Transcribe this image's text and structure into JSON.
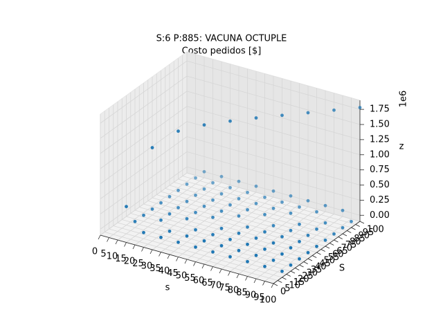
{
  "chart_data": {
    "type": "scatter3d",
    "title": "S:6 P:885: VACUNA OCTUPLE",
    "subtitle": "Costo pedidos [$]",
    "xlabel": "s",
    "ylabel": "S",
    "zlabel": "z",
    "z_offset_label": "1e6",
    "color": "#1f77b4",
    "grid": true,
    "s": [
      10,
      20,
      30,
      40,
      50,
      60,
      70,
      80,
      90,
      100
    ],
    "S": [
      10,
      20,
      30,
      40,
      50,
      60,
      70,
      80,
      90,
      100
    ],
    "z": [
      [
        0.35,
        0,
        0,
        0,
        0,
        0,
        0,
        0,
        0,
        0
      ],
      [
        0,
        1.3,
        0,
        0,
        0,
        0,
        0,
        0,
        0,
        0
      ],
      [
        0,
        0,
        1.55,
        0,
        0,
        0,
        0,
        0,
        0,
        0
      ],
      [
        0,
        0,
        0,
        1.63,
        0,
        0,
        0,
        0,
        0,
        0
      ],
      [
        0,
        0,
        0,
        0,
        1.67,
        0,
        0,
        0,
        0,
        0
      ],
      [
        0,
        0,
        0,
        0,
        0,
        1.7,
        0,
        0,
        0,
        0
      ],
      [
        0,
        0,
        0,
        0,
        0,
        0,
        1.72,
        0,
        0,
        0
      ],
      [
        0,
        0,
        0,
        0,
        0,
        0,
        0,
        1.74,
        0,
        0
      ],
      [
        0,
        0,
        0,
        0,
        0,
        0,
        0,
        0,
        1.76,
        0
      ],
      [
        0,
        0,
        0,
        0,
        0,
        0,
        0,
        0,
        0,
        1.78
      ]
    ],
    "xlim": [
      0,
      100
    ],
    "ylim": [
      0,
      100
    ],
    "zlim": [
      -0.1,
      1.9
    ],
    "xticks": [
      0,
      5,
      10,
      15,
      20,
      25,
      30,
      35,
      40,
      45,
      50,
      55,
      60,
      65,
      70,
      75,
      80,
      85,
      90,
      95,
      100
    ],
    "yticks": [
      0,
      5,
      10,
      15,
      20,
      25,
      30,
      35,
      40,
      45,
      50,
      55,
      60,
      65,
      70,
      75,
      80,
      85,
      90,
      95,
      100
    ],
    "zticks": [
      {
        "value": 0,
        "label": "0.00"
      },
      0.25,
      {
        "value": 0.5,
        "label": "0.50"
      },
      0.75,
      {
        "value": 1,
        "label": "1.00"
      },
      1.25,
      {
        "value": 1.5,
        "label": "1.50"
      },
      1.75
    ]
  }
}
